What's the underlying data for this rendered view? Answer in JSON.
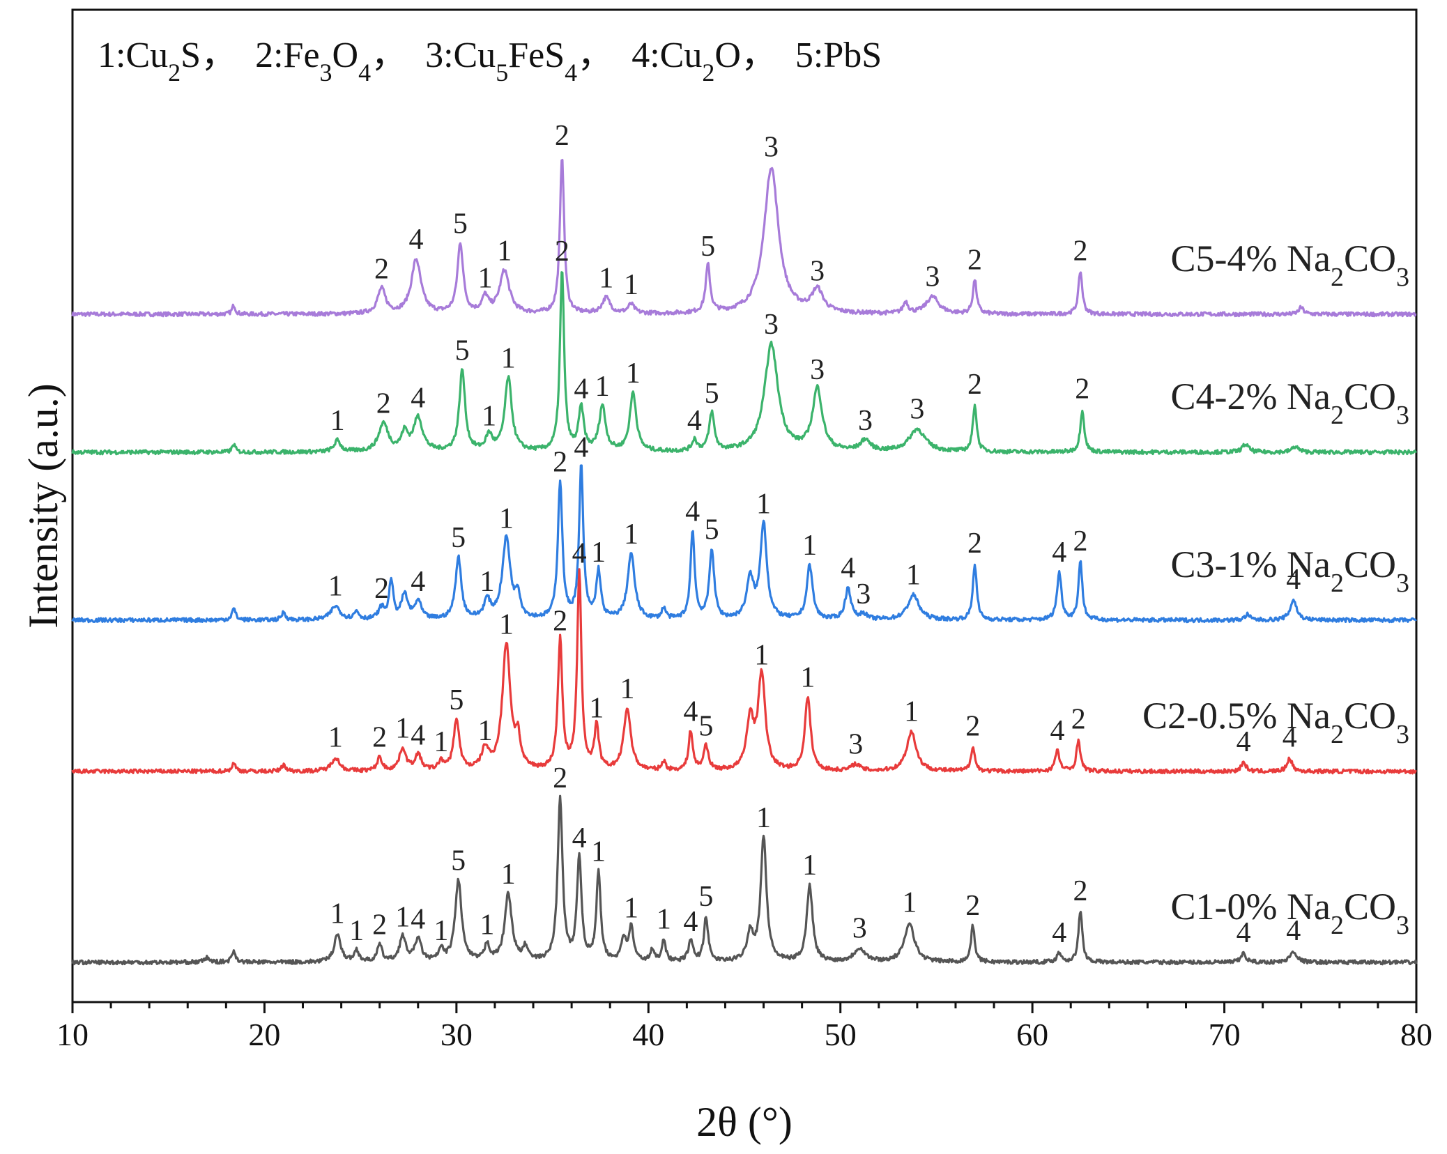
{
  "chart_data": {
    "type": "line",
    "title": "",
    "xlabel": "2θ (°)",
    "ylabel": "Intensity (a.u.)",
    "xlim": [
      10,
      80
    ],
    "xticks": [
      10,
      20,
      30,
      40,
      50,
      60,
      70,
      80
    ],
    "y_ticks_shown": false,
    "grid": false,
    "phase_key": [
      {
        "id": "1",
        "base": "Cu",
        "sub1": "2",
        "mid": "S",
        "sub2": ""
      },
      {
        "id": "2",
        "base": "Fe",
        "sub1": "3",
        "mid": "O",
        "sub2": "4"
      },
      {
        "id": "3",
        "base": "Cu",
        "sub1": "5",
        "mid": "FeS",
        "sub2": "4"
      },
      {
        "id": "4",
        "base": "Cu",
        "sub1": "2",
        "mid": "O",
        "sub2": ""
      },
      {
        "id": "5",
        "base": "PbS",
        "sub1": "",
        "mid": "",
        "sub2": ""
      }
    ],
    "series": [
      {
        "name": "C5-4% Na2CO3",
        "label_main": "C5-4% Na",
        "label_sub": "2",
        "label_tail": "CO",
        "label_sub2": "3",
        "color": "#a77bd9",
        "offset": 4,
        "peaks": [
          {
            "x": 18.4,
            "h": 0.08,
            "w": 0.1
          },
          {
            "x": 26.1,
            "h": 0.22,
            "w": 0.25,
            "label": "2"
          },
          {
            "x": 27.9,
            "h": 0.48,
            "w": 0.3,
            "label": "4"
          },
          {
            "x": 30.2,
            "h": 0.62,
            "w": 0.18,
            "label": "5"
          },
          {
            "x": 31.5,
            "h": 0.14,
            "w": 0.2,
            "label": "1"
          },
          {
            "x": 32.5,
            "h": 0.38,
            "w": 0.3,
            "label": "1"
          },
          {
            "x": 35.5,
            "h": 1.4,
            "w": 0.13,
            "label": "2"
          },
          {
            "x": 37.8,
            "h": 0.14,
            "w": 0.25,
            "label": "1"
          },
          {
            "x": 39.1,
            "h": 0.08,
            "w": 0.2,
            "label": "1"
          },
          {
            "x": 43.1,
            "h": 0.42,
            "w": 0.14,
            "label": "5"
          },
          {
            "x": 46.4,
            "h": 1.3,
            "w": 0.45,
            "label": "3"
          },
          {
            "x": 48.8,
            "h": 0.2,
            "w": 0.35,
            "label": "3"
          },
          {
            "x": 53.4,
            "h": 0.1,
            "w": 0.15
          },
          {
            "x": 54.8,
            "h": 0.15,
            "w": 0.4,
            "label": "3"
          },
          {
            "x": 57.0,
            "h": 0.3,
            "w": 0.12,
            "label": "2"
          },
          {
            "x": 62.5,
            "h": 0.38,
            "w": 0.12,
            "label": "2"
          },
          {
            "x": 74.0,
            "h": 0.06,
            "w": 0.15
          }
        ]
      },
      {
        "name": "C4-2% Na2CO3",
        "label_main": "C4-2% Na",
        "label_sub": "2",
        "label_tail": "CO",
        "label_sub2": "3",
        "color": "#3bb36b",
        "offset": 3,
        "peaks": [
          {
            "x": 18.4,
            "h": 0.07,
            "w": 0.1
          },
          {
            "x": 23.8,
            "h": 0.1,
            "w": 0.2,
            "label": "1"
          },
          {
            "x": 26.2,
            "h": 0.25,
            "w": 0.3,
            "label": "2"
          },
          {
            "x": 27.3,
            "h": 0.16,
            "w": 0.2
          },
          {
            "x": 28.0,
            "h": 0.3,
            "w": 0.28,
            "label": "4"
          },
          {
            "x": 30.3,
            "h": 0.72,
            "w": 0.18,
            "label": "5"
          },
          {
            "x": 31.7,
            "h": 0.14,
            "w": 0.2,
            "label": "1"
          },
          {
            "x": 32.7,
            "h": 0.65,
            "w": 0.22,
            "label": "1"
          },
          {
            "x": 35.5,
            "h": 1.6,
            "w": 0.13,
            "label": "2"
          },
          {
            "x": 36.5,
            "h": 0.38,
            "w": 0.16,
            "label": "4"
          },
          {
            "x": 37.6,
            "h": 0.4,
            "w": 0.2,
            "label": "1"
          },
          {
            "x": 39.2,
            "h": 0.52,
            "w": 0.2,
            "label": "1"
          },
          {
            "x": 42.4,
            "h": 0.1,
            "w": 0.15,
            "label": "4"
          },
          {
            "x": 43.3,
            "h": 0.34,
            "w": 0.16,
            "label": "5"
          },
          {
            "x": 46.4,
            "h": 0.95,
            "w": 0.42,
            "label": "3"
          },
          {
            "x": 48.8,
            "h": 0.55,
            "w": 0.3,
            "label": "3"
          },
          {
            "x": 51.3,
            "h": 0.1,
            "w": 0.3,
            "label": "3"
          },
          {
            "x": 54.0,
            "h": 0.2,
            "w": 0.5,
            "label": "3"
          },
          {
            "x": 57.0,
            "h": 0.42,
            "w": 0.12,
            "label": "2"
          },
          {
            "x": 62.6,
            "h": 0.38,
            "w": 0.12,
            "label": "2"
          },
          {
            "x": 71.1,
            "h": 0.07,
            "w": 0.2
          },
          {
            "x": 73.7,
            "h": 0.05,
            "w": 0.2
          }
        ]
      },
      {
        "name": "C3-1% Na2CO3",
        "label_main": "C3-1% Na",
        "label_sub": "2",
        "label_tail": "CO",
        "label_sub2": "3",
        "color": "#2f7de0",
        "offset": 2,
        "peaks": [
          {
            "x": 18.4,
            "h": 0.1,
            "w": 0.12
          },
          {
            "x": 21.0,
            "h": 0.07,
            "w": 0.12
          },
          {
            "x": 23.7,
            "h": 0.12,
            "w": 0.3,
            "label": "1"
          },
          {
            "x": 24.8,
            "h": 0.07,
            "w": 0.15
          },
          {
            "x": 26.1,
            "h": 0.1,
            "w": 0.2,
            "label": "2"
          },
          {
            "x": 26.6,
            "h": 0.35,
            "w": 0.12
          },
          {
            "x": 27.3,
            "h": 0.22,
            "w": 0.2
          },
          {
            "x": 28.0,
            "h": 0.16,
            "w": 0.2,
            "label": "4"
          },
          {
            "x": 30.1,
            "h": 0.55,
            "w": 0.18,
            "label": "5"
          },
          {
            "x": 31.6,
            "h": 0.16,
            "w": 0.2,
            "label": "1"
          },
          {
            "x": 32.6,
            "h": 0.72,
            "w": 0.25,
            "label": "1"
          },
          {
            "x": 33.2,
            "h": 0.2,
            "w": 0.15
          },
          {
            "x": 35.4,
            "h": 1.22,
            "w": 0.14,
            "label": "2"
          },
          {
            "x": 36.5,
            "h": 1.35,
            "w": 0.13,
            "label": "4"
          },
          {
            "x": 37.4,
            "h": 0.42,
            "w": 0.14,
            "label": "1"
          },
          {
            "x": 39.1,
            "h": 0.58,
            "w": 0.22,
            "label": "1"
          },
          {
            "x": 40.8,
            "h": 0.1,
            "w": 0.12
          },
          {
            "x": 42.3,
            "h": 0.78,
            "w": 0.13,
            "label": "4"
          },
          {
            "x": 43.3,
            "h": 0.62,
            "w": 0.15,
            "label": "5"
          },
          {
            "x": 45.3,
            "h": 0.35,
            "w": 0.22
          },
          {
            "x": 46.0,
            "h": 0.85,
            "w": 0.2,
            "label": "1"
          },
          {
            "x": 48.4,
            "h": 0.48,
            "w": 0.18,
            "label": "1"
          },
          {
            "x": 50.4,
            "h": 0.28,
            "w": 0.18,
            "label": "4"
          },
          {
            "x": 51.2,
            "h": 0.05,
            "w": 0.2,
            "label": "3"
          },
          {
            "x": 53.8,
            "h": 0.22,
            "w": 0.35,
            "label": "1"
          },
          {
            "x": 57.0,
            "h": 0.5,
            "w": 0.12,
            "label": "2"
          },
          {
            "x": 61.4,
            "h": 0.42,
            "w": 0.14,
            "label": "4"
          },
          {
            "x": 62.5,
            "h": 0.52,
            "w": 0.12,
            "label": "2"
          },
          {
            "x": 71.2,
            "h": 0.05,
            "w": 0.15
          },
          {
            "x": 73.6,
            "h": 0.18,
            "w": 0.2,
            "label": "4"
          }
        ]
      },
      {
        "name": "C2-0.5% Na2CO3",
        "label_main": "C2-0.5% Na",
        "label_sub": "2",
        "label_tail": "CO",
        "label_sub2": "3",
        "color": "#e83b3b",
        "offset": 1,
        "peaks": [
          {
            "x": 18.4,
            "h": 0.07,
            "w": 0.12
          },
          {
            "x": 21.0,
            "h": 0.06,
            "w": 0.12
          },
          {
            "x": 23.7,
            "h": 0.12,
            "w": 0.25,
            "label": "1"
          },
          {
            "x": 26.0,
            "h": 0.12,
            "w": 0.15,
            "label": "2"
          },
          {
            "x": 27.2,
            "h": 0.2,
            "w": 0.2,
            "label": "1"
          },
          {
            "x": 28.0,
            "h": 0.14,
            "w": 0.2,
            "label": "4"
          },
          {
            "x": 29.2,
            "h": 0.08,
            "w": 0.15,
            "label": "1"
          },
          {
            "x": 30.0,
            "h": 0.45,
            "w": 0.18,
            "label": "5"
          },
          {
            "x": 31.5,
            "h": 0.18,
            "w": 0.22,
            "label": "1"
          },
          {
            "x": 32.6,
            "h": 1.12,
            "w": 0.25,
            "label": "1"
          },
          {
            "x": 33.2,
            "h": 0.25,
            "w": 0.15
          },
          {
            "x": 35.4,
            "h": 1.15,
            "w": 0.14,
            "label": "2"
          },
          {
            "x": 36.4,
            "h": 1.75,
            "w": 0.13,
            "label": "4"
          },
          {
            "x": 37.3,
            "h": 0.38,
            "w": 0.14,
            "label": "1"
          },
          {
            "x": 38.9,
            "h": 0.55,
            "w": 0.22,
            "label": "1"
          },
          {
            "x": 40.8,
            "h": 0.08,
            "w": 0.12
          },
          {
            "x": 42.2,
            "h": 0.35,
            "w": 0.13,
            "label": "4"
          },
          {
            "x": 43.0,
            "h": 0.22,
            "w": 0.15,
            "label": "5"
          },
          {
            "x": 45.3,
            "h": 0.45,
            "w": 0.22
          },
          {
            "x": 45.9,
            "h": 0.85,
            "w": 0.22,
            "label": "1"
          },
          {
            "x": 48.3,
            "h": 0.65,
            "w": 0.18,
            "label": "1"
          },
          {
            "x": 50.8,
            "h": 0.06,
            "w": 0.25,
            "label": "3"
          },
          {
            "x": 53.7,
            "h": 0.35,
            "w": 0.3,
            "label": "1"
          },
          {
            "x": 56.9,
            "h": 0.22,
            "w": 0.12,
            "label": "2"
          },
          {
            "x": 61.3,
            "h": 0.18,
            "w": 0.14,
            "label": "4"
          },
          {
            "x": 62.4,
            "h": 0.28,
            "w": 0.12,
            "label": "2"
          },
          {
            "x": 71.0,
            "h": 0.08,
            "w": 0.15,
            "label": "4"
          },
          {
            "x": 73.4,
            "h": 0.12,
            "w": 0.15,
            "label": "4"
          }
        ]
      },
      {
        "name": "C1-0% Na2CO3",
        "label_main": "C1-0% Na",
        "label_sub": "2",
        "label_tail": "CO",
        "label_sub2": "3",
        "color": "#555555",
        "offset": 0,
        "peaks": [
          {
            "x": 17.0,
            "h": 0.04,
            "w": 0.15
          },
          {
            "x": 18.4,
            "h": 0.1,
            "w": 0.12
          },
          {
            "x": 23.8,
            "h": 0.25,
            "w": 0.2,
            "label": "1"
          },
          {
            "x": 24.8,
            "h": 0.1,
            "w": 0.15,
            "label": "1"
          },
          {
            "x": 26.0,
            "h": 0.15,
            "w": 0.15,
            "label": "2"
          },
          {
            "x": 27.2,
            "h": 0.22,
            "w": 0.2,
            "label": "1"
          },
          {
            "x": 28.0,
            "h": 0.2,
            "w": 0.2,
            "label": "4"
          },
          {
            "x": 29.2,
            "h": 0.1,
            "w": 0.15,
            "label": "1"
          },
          {
            "x": 30.1,
            "h": 0.72,
            "w": 0.2,
            "label": "5"
          },
          {
            "x": 31.6,
            "h": 0.15,
            "w": 0.15,
            "label": "1"
          },
          {
            "x": 32.7,
            "h": 0.6,
            "w": 0.22,
            "label": "1"
          },
          {
            "x": 33.6,
            "h": 0.12,
            "w": 0.15
          },
          {
            "x": 35.4,
            "h": 1.45,
            "w": 0.15,
            "label": "2"
          },
          {
            "x": 36.4,
            "h": 0.92,
            "w": 0.14,
            "label": "4"
          },
          {
            "x": 37.4,
            "h": 0.8,
            "w": 0.13,
            "label": "1"
          },
          {
            "x": 38.7,
            "h": 0.2,
            "w": 0.15
          },
          {
            "x": 39.1,
            "h": 0.3,
            "w": 0.15,
            "label": "1"
          },
          {
            "x": 40.2,
            "h": 0.1,
            "w": 0.12
          },
          {
            "x": 40.8,
            "h": 0.2,
            "w": 0.12,
            "label": "1"
          },
          {
            "x": 42.2,
            "h": 0.18,
            "w": 0.15,
            "label": "4"
          },
          {
            "x": 43.0,
            "h": 0.4,
            "w": 0.13,
            "label": "5"
          },
          {
            "x": 45.3,
            "h": 0.25,
            "w": 0.2
          },
          {
            "x": 46.0,
            "h": 1.1,
            "w": 0.18,
            "label": "1"
          },
          {
            "x": 48.4,
            "h": 0.68,
            "w": 0.18,
            "label": "1"
          },
          {
            "x": 51.0,
            "h": 0.12,
            "w": 0.35,
            "label": "3"
          },
          {
            "x": 53.6,
            "h": 0.35,
            "w": 0.3,
            "label": "1"
          },
          {
            "x": 56.9,
            "h": 0.32,
            "w": 0.12,
            "label": "2"
          },
          {
            "x": 61.4,
            "h": 0.08,
            "w": 0.15,
            "label": "4"
          },
          {
            "x": 62.5,
            "h": 0.45,
            "w": 0.12,
            "label": "2"
          },
          {
            "x": 71.0,
            "h": 0.08,
            "w": 0.15,
            "label": "4"
          },
          {
            "x": 73.6,
            "h": 0.1,
            "w": 0.2,
            "label": "4"
          }
        ]
      }
    ]
  }
}
